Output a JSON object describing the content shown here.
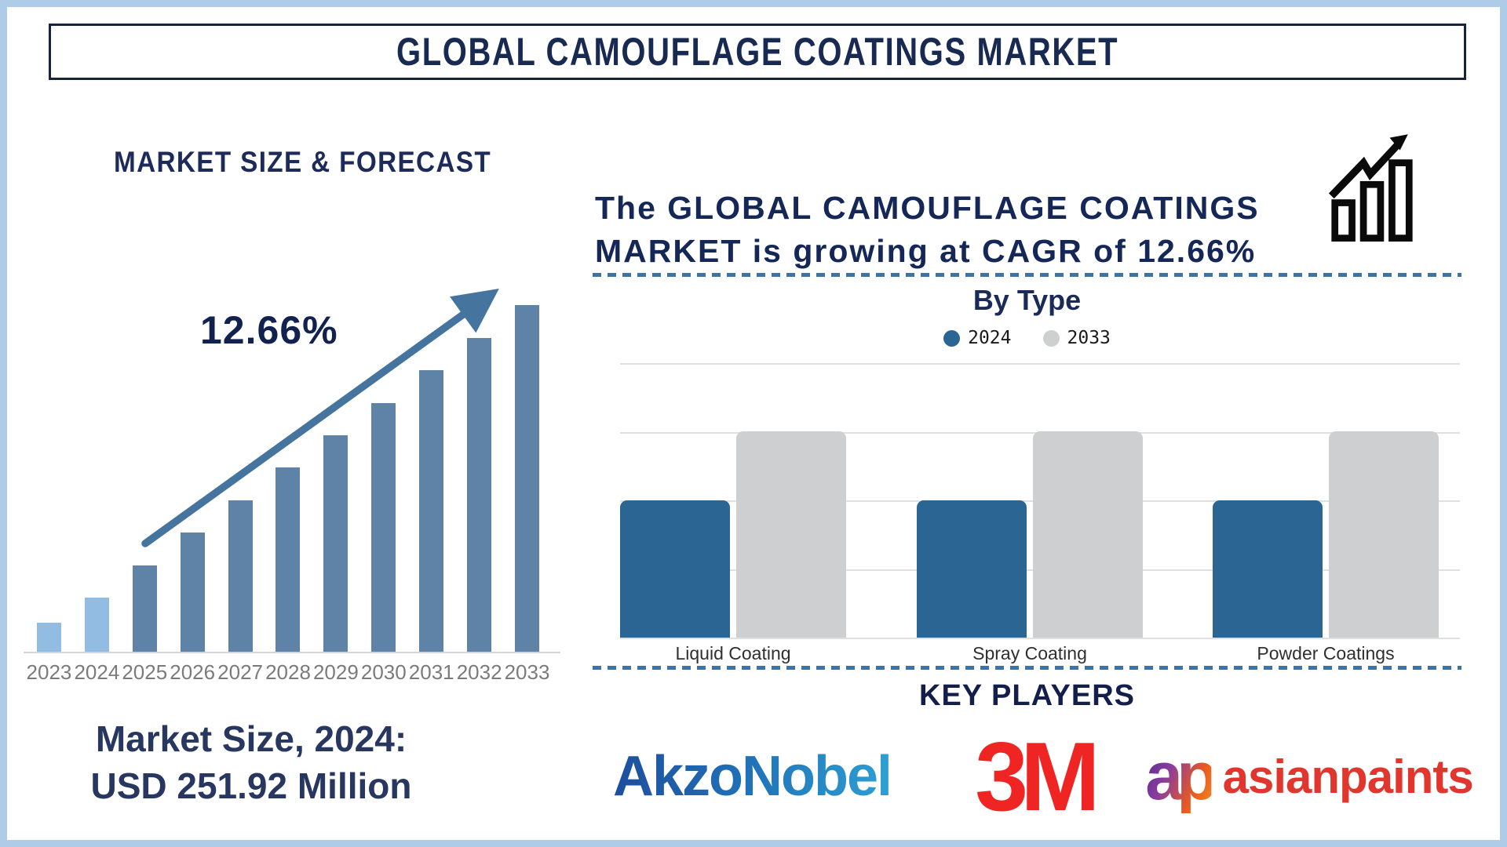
{
  "title": {
    "text": "GLOBAL CAMOUFLAGE COATINGS MARKET"
  },
  "palette": {
    "navy": "#152757",
    "frame_blue": "#aecbe8",
    "light_blue_bar": "#92bce2",
    "steel_blue_bar": "#5e83a7",
    "arrow_blue": "#45749f",
    "type_blue_bar": "#2a6593",
    "type_gray_bar": "#cdcfd0",
    "dash_blue": "#3e74a4",
    "year_label_gray": "#7b7b7b",
    "akzonobel_blue_from": "#1d4e9e",
    "akzonobel_blue_to": "#2e9fd4",
    "m3_red": "#ee2522",
    "asianpaints_red": "#e0362d"
  },
  "left": {
    "heading": "MARKET SIZE & FORECAST",
    "cagr": "12.66%",
    "market_size_line1": "Market Size, 2024:",
    "market_size_line2": "USD 251.92 Million"
  },
  "right": {
    "headline_line1": "The GLOBAL CAMOUFLAGE COATINGS",
    "headline_line2": "MARKET is growing at CAGR of 12.66%",
    "by_type_title": "By Type",
    "key_players_title": "KEY PLAYERS",
    "players": [
      {
        "name": "AkzoNobel"
      },
      {
        "name": "3M"
      },
      {
        "name": "asianpaints",
        "mark": "ap"
      }
    ]
  },
  "chart_data": [
    {
      "type": "bar",
      "title": "MARKET SIZE & FORECAST",
      "categories": [
        "2023",
        "2024",
        "2025",
        "2026",
        "2027",
        "2028",
        "2029",
        "2030",
        "2031",
        "2032",
        "2033"
      ],
      "values_relative_pct": [
        8.8,
        16.0,
        25.2,
        34.7,
        43.9,
        53.4,
        62.6,
        71.8,
        81.3,
        90.5,
        100
      ],
      "bar_colors": [
        "#92bce2",
        "#92bce2",
        "#5e83a7",
        "#5e83a7",
        "#5e83a7",
        "#5e83a7",
        "#5e83a7",
        "#5e83a7",
        "#5e83a7",
        "#5e83a7",
        "#5e83a7"
      ],
      "annotation": "12.66%",
      "known_value": {
        "year": "2024",
        "usd_million": 251.92
      },
      "ylabel": "",
      "note": "no y-axis shown; bar heights relative to tallest (2033)"
    },
    {
      "type": "bar",
      "title": "By Type",
      "categories": [
        "Liquid Coating",
        "Spray Coating",
        "Powder Coatings"
      ],
      "series": [
        {
          "name": "2024",
          "color": "#2a6593",
          "values": [
            2,
            2,
            2
          ]
        },
        {
          "name": "2033",
          "color": "#cdcfd0",
          "values": [
            3,
            3,
            3
          ]
        }
      ],
      "ylim": [
        0,
        4
      ],
      "grid": "horizontal, 5 lines, no tick labels",
      "legend_position": "top"
    }
  ]
}
